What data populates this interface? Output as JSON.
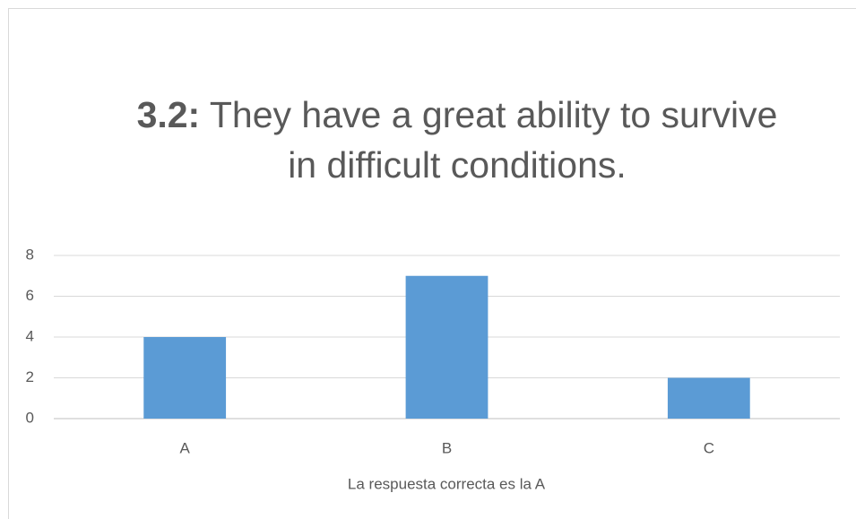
{
  "chart_data": {
    "type": "bar",
    "title_label": "3.2:",
    "title": "They have a great ability to survive in difficult conditions.",
    "x_label": "La respuesta correcta es la A",
    "categories": [
      "A",
      "B",
      "C"
    ],
    "values": [
      4,
      7,
      2
    ],
    "color": "#5b9bd5",
    "ylim": [
      0,
      8
    ],
    "yticks": [
      0,
      2,
      4,
      6,
      8
    ],
    "grid": true
  }
}
